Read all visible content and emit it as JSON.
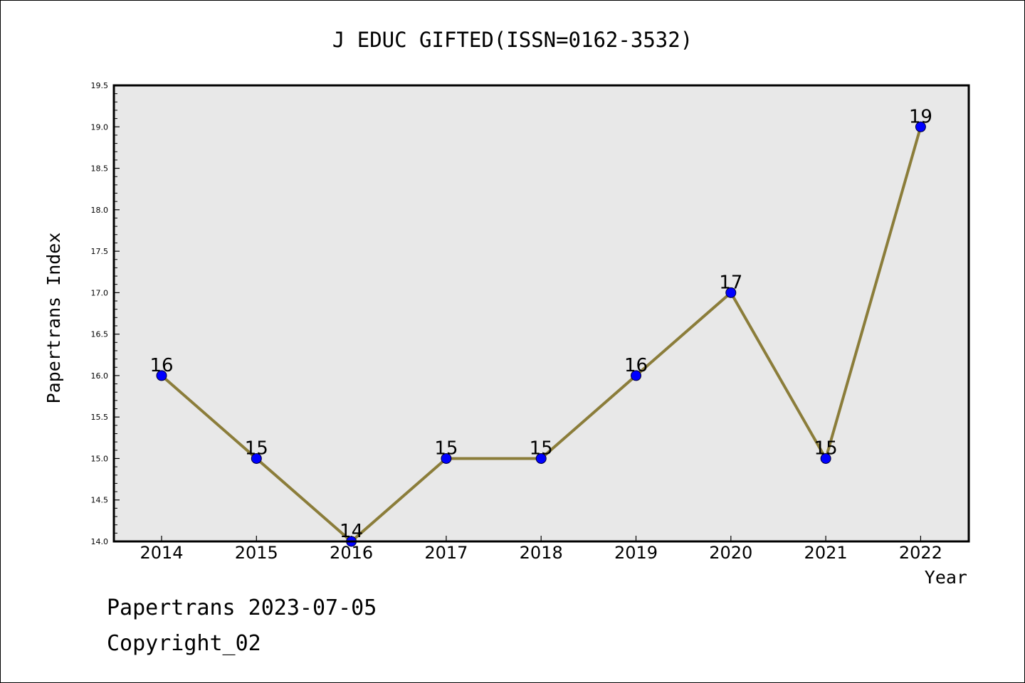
{
  "chart_data": {
    "type": "line",
    "title": "J EDUC GIFTED(ISSN=0162-3532)",
    "xlabel": "Year",
    "ylabel": "Papertrans Index",
    "categories": [
      "2014",
      "2015",
      "2016",
      "2017",
      "2018",
      "2019",
      "2020",
      "2021",
      "2022"
    ],
    "values": [
      16,
      15,
      14,
      15,
      15,
      16,
      17,
      15,
      19
    ],
    "data_labels": [
      "16",
      "15",
      "14",
      "15",
      "15",
      "16",
      "17",
      "15",
      "19"
    ],
    "ylim": [
      14.0,
      19.5
    ],
    "yticks": [
      "14.0",
      "14.5",
      "15.0",
      "15.5",
      "16.0",
      "16.5",
      "17.0",
      "17.5",
      "18.0",
      "18.5",
      "19.0",
      "19.5"
    ],
    "grid": false,
    "legend": "none",
    "colors": {
      "line": "#8b7d3a",
      "marker": "#0000ff",
      "plot_background": "#e8e8e8"
    }
  },
  "footer": {
    "line1": "Papertrans 2023-07-05",
    "line2": "Copyright_02"
  }
}
